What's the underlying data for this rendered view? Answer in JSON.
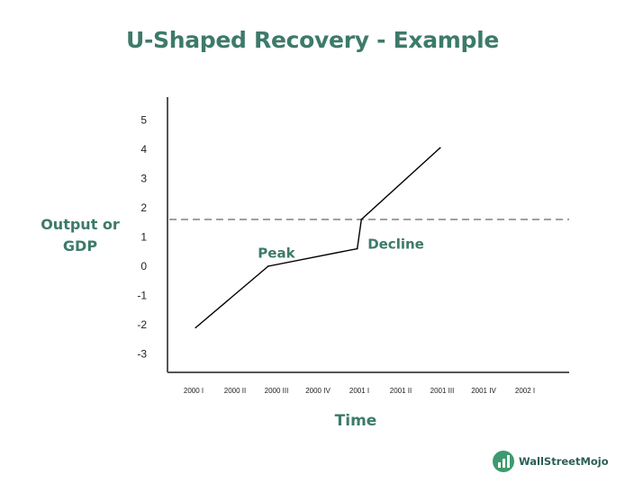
{
  "chart_data": {
    "type": "line",
    "title": "U-Shaped Recovery - Example",
    "xlabel": "Time",
    "ylabel_lines": [
      "Output or",
      "GDP"
    ],
    "categories": [
      "2000 I",
      "2000 II",
      "2000 III",
      "2000 IV",
      "2001 I",
      "2001 II",
      "2001 III",
      "2001 IV",
      "2002 I"
    ],
    "y_ticks": [
      "5",
      "4",
      "3",
      "2",
      "1",
      "0",
      "-1",
      "-2",
      "-3"
    ],
    "ylim": [
      -3.5,
      5.5
    ],
    "series": [
      {
        "points": [
          {
            "x": 0.05,
            "y": -2.1
          },
          {
            "x": 1.8,
            "y": 0.0
          },
          {
            "x": 3.95,
            "y": 0.6
          },
          {
            "x": 4.05,
            "y": 1.6
          },
          {
            "x": 5.95,
            "y": 4.05
          }
        ]
      }
    ],
    "reference_line": {
      "y": 1.6,
      "style": "dashed"
    },
    "annotations": [
      {
        "text": "Peak",
        "x": 1.55,
        "y": 0.3
      },
      {
        "text": "Decline",
        "x": 4.2,
        "y": 0.6
      }
    ],
    "grid": false,
    "colors": {
      "line": "#000000",
      "reference": "#808080",
      "text": "#3d7a6a"
    }
  },
  "branding": {
    "logo_text": "WallStreetMojo"
  }
}
